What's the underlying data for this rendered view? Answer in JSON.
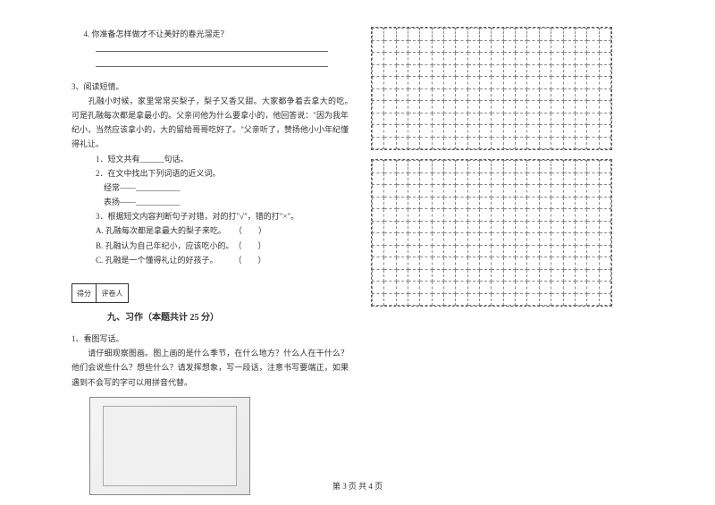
{
  "q4": {
    "text": "4. 你准备怎样做才不让美好的春光溜走？"
  },
  "q3": {
    "header": "3、阅读短情。",
    "passage": "　　孔融小时候，家里常常买梨子，梨子又香又甜。大家都争着去拿大的吃。　可是孔融每次都是拿最小的。父亲问他为什么要拿小的，他回答说：\"因为我年　纪小，当然应该拿小的，大的留给哥哥吃好了。\"父亲听了，赞扬他小小年纪懂　得礼让。",
    "sub1": "1．短文共有______句话。",
    "sub2": "2．在文中找出下列词语的近义词。",
    "sub2a": "经常——___________",
    "sub2b": "表扬——___________",
    "sub3": "3．根据短文内容判断句子对错，对的打\"√\"，错的打\"×\"。",
    "sub3a": "A. 孔融每次都是拿最大的梨子来吃。　　（　　）",
    "sub3b": "B. 孔融认为自己年纪小，应该吃小的。　（　　）",
    "sub3c": "C. 孔融是一个懂得礼让的好孩子。　　　（　　）"
  },
  "section9": {
    "scoreLabel1": "得分",
    "scoreLabel2": "评卷人",
    "title": "九、习作（本题共计 25 分）",
    "q1header": "1、看图写话。",
    "q1text": "　　请仔细观察图画。图上画的是什么季节，在什么地方？什么人在干什么？他们会说些什么？想些什么？请发挥想象，写一段话，注意书写要端正，如果遇到不会写的字可以用拼音代替。"
  },
  "footer": "第 3 页 共 4 页",
  "gridConfig": {
    "cols": 20,
    "rowsBlock1": 10,
    "rowsBlock2": 12
  }
}
